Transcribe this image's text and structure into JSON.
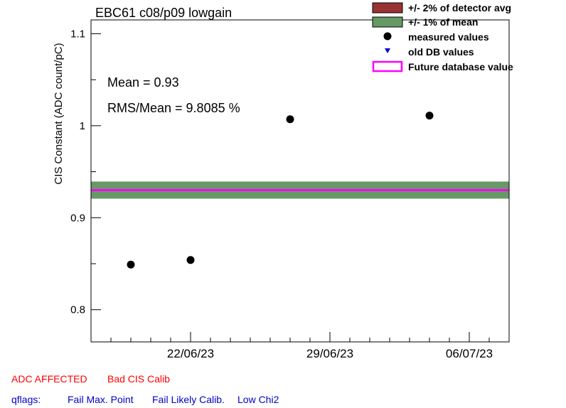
{
  "chart_data": {
    "type": "scatter",
    "title": "EBC61 c08/p09 lowgain",
    "xlabel": "",
    "ylabel": "CIS Constant (ADC count/pC)",
    "ylim": [
      0.765,
      1.115
    ],
    "xlim": [
      "2023-06-17",
      "2023-07-08"
    ],
    "grid": false,
    "x_ticks": [
      {
        "date": "2023-06-22",
        "label": "22/06/23"
      },
      {
        "date": "2023-06-29",
        "label": "29/06/23"
      },
      {
        "date": "2023-07-06",
        "label": "06/07/23"
      }
    ],
    "y_ticks": [
      {
        "value": 0.8,
        "label": "0.8"
      },
      {
        "value": 0.9,
        "label": "0.9"
      },
      {
        "value": 1.0,
        "label": "1"
      },
      {
        "value": 1.1,
        "label": "1.1"
      }
    ],
    "series": [
      {
        "name": "measured values",
        "points": [
          {
            "x": "2023-06-19",
            "y": 0.849
          },
          {
            "x": "2023-06-22",
            "y": 0.854
          },
          {
            "x": "2023-06-27",
            "y": 1.007
          },
          {
            "x": "2023-07-04",
            "y": 1.011
          }
        ]
      }
    ],
    "mean_band": {
      "center": 0.93,
      "half_width": 0.0093
    },
    "future_db_value": 0.93,
    "annotations": {
      "mean": "Mean = 0.93",
      "rms": "RMS/Mean = 9.8085 %"
    },
    "legend": {
      "placement": "top-right",
      "entries": [
        {
          "label": "+/- 2% of detector avg",
          "color": "#993333"
        },
        {
          "label": "+/- 1% of mean",
          "color": "#669966"
        },
        {
          "label": "measured values",
          "color": "#000000"
        },
        {
          "label": "old DB values",
          "color": "#0000cc"
        },
        {
          "label": "Future database value",
          "color": "#ff00ff"
        }
      ]
    }
  },
  "flags": {
    "adc_affected": "ADC AFFECTED",
    "bad_cis": "Bad CIS Calib",
    "qflags_label": "qflags:",
    "fail_max": "Fail Max. Point",
    "fail_likely": "Fail Likely Calib.",
    "low_chi2": "Low Chi2"
  }
}
